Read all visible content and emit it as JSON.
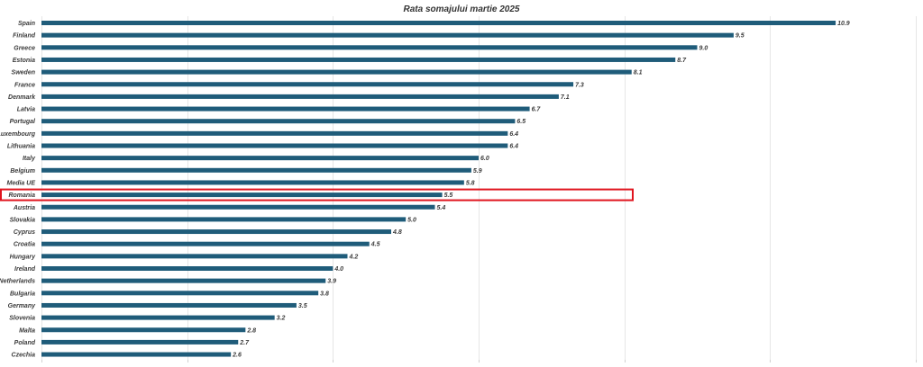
{
  "chart_data": {
    "type": "bar",
    "orientation": "horizontal",
    "title": "Rata somajului martie 2025",
    "xlabel": "",
    "ylabel": "",
    "xlim": [
      0,
      12
    ],
    "grid": true,
    "bar_color": "#1f5c7a",
    "highlight_color": "#e0141e",
    "highlight_category": "Romania",
    "categories": [
      "Spain",
      "Finland",
      "Greece",
      "Estonia",
      "Sweden",
      "France",
      "Denmark",
      "Latvia",
      "Portugal",
      "Luxembourg",
      "Lithuania",
      "Italy",
      "Belgium",
      "Media UE",
      "Romania",
      "Austria",
      "Slovakia",
      "Cyprus",
      "Croatia",
      "Hungary",
      "Ireland",
      "Netherlands",
      "Bulgaria",
      "Germany",
      "Slovenia",
      "Malta",
      "Poland",
      "Czechia"
    ],
    "values": [
      10.9,
      9.5,
      9.0,
      8.7,
      8.1,
      7.3,
      7.1,
      6.7,
      6.5,
      6.4,
      6.4,
      6.0,
      5.9,
      5.8,
      5.5,
      5.4,
      5.0,
      4.8,
      4.5,
      4.2,
      4.0,
      3.9,
      3.8,
      3.5,
      3.2,
      2.8,
      2.7,
      2.6
    ],
    "value_labels": [
      "10.9",
      "9.5",
      "9.0",
      "8.7",
      "8.1",
      "7.3",
      "7.1",
      "6.7",
      "6.5",
      "6.4",
      "6.4",
      "6.0",
      "5.9",
      "5.8",
      "5.5",
      "5.4",
      "5.0",
      "4.8",
      "4.5",
      "4.2",
      "4.0",
      "3.9",
      "3.8",
      "3.5",
      "3.2",
      "2.8",
      "2.7",
      "2.6"
    ]
  }
}
